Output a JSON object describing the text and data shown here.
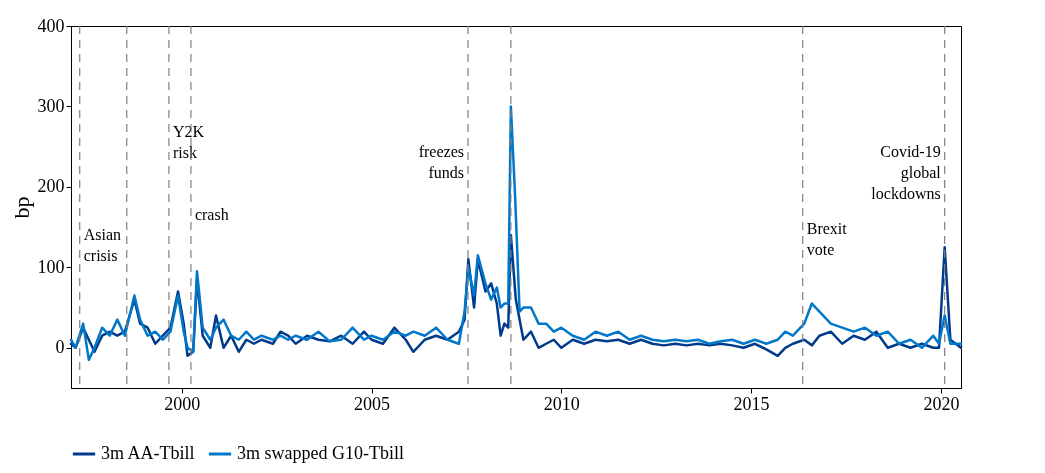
{
  "chart_data": {
    "type": "line",
    "ylabel": "bp",
    "xlim": [
      1997.08,
      2020.53
    ],
    "xticks": [
      2000,
      2005,
      2010,
      2015,
      2020
    ],
    "ylim": [
      -50,
      400
    ],
    "yticks": [
      0,
      100,
      200,
      300,
      400
    ],
    "grid": false,
    "legend": "bottom",
    "marker": "none",
    "line_style": "solid",
    "series": [
      {
        "name": "3m AA-Tbill",
        "color": "#003a8c",
        "x": [
          1997.08,
          1997.2,
          1997.4,
          1997.55,
          1997.7,
          1997.9,
          1998.1,
          1998.3,
          1998.5,
          1998.75,
          1998.9,
          1999.1,
          1999.3,
          1999.5,
          1999.7,
          1999.9,
          2000.05,
          2000.15,
          2000.3,
          2000.4,
          2000.55,
          2000.75,
          2000.9,
          2001.1,
          2001.3,
          2001.5,
          2001.7,
          2001.9,
          2002.1,
          2002.4,
          2002.6,
          2002.8,
          2003.0,
          2003.3,
          2003.6,
          2003.9,
          2004.2,
          2004.5,
          2004.8,
          2005.0,
          2005.3,
          2005.6,
          2005.9,
          2006.1,
          2006.4,
          2006.7,
          2007.0,
          2007.3,
          2007.45,
          2007.55,
          2007.7,
          2007.8,
          2008.0,
          2008.15,
          2008.3,
          2008.4,
          2008.5,
          2008.6,
          2008.67,
          2008.8,
          2009.0,
          2009.2,
          2009.4,
          2009.6,
          2009.8,
          2010.0,
          2010.3,
          2010.6,
          2010.9,
          2011.2,
          2011.5,
          2011.8,
          2012.1,
          2012.4,
          2012.7,
          2013.0,
          2013.3,
          2013.6,
          2013.9,
          2014.2,
          2014.5,
          2014.8,
          2015.1,
          2015.4,
          2015.7,
          2015.9,
          2016.1,
          2016.4,
          2016.6,
          2016.8,
          2017.1,
          2017.4,
          2017.7,
          2018.0,
          2018.3,
          2018.6,
          2018.9,
          2019.2,
          2019.5,
          2019.8,
          2019.95,
          2020.1,
          2020.25,
          2020.53
        ],
        "values": [
          5,
          0,
          25,
          10,
          -5,
          15,
          20,
          15,
          20,
          60,
          30,
          25,
          5,
          15,
          25,
          70,
          30,
          -10,
          -5,
          85,
          15,
          0,
          40,
          0,
          15,
          -5,
          10,
          5,
          10,
          5,
          20,
          15,
          5,
          15,
          10,
          8,
          15,
          5,
          20,
          10,
          5,
          25,
          10,
          -5,
          10,
          15,
          10,
          20,
          35,
          110,
          50,
          110,
          70,
          80,
          55,
          15,
          30,
          25,
          140,
          60,
          10,
          20,
          0,
          5,
          10,
          0,
          10,
          5,
          10,
          8,
          10,
          5,
          10,
          5,
          3,
          5,
          3,
          5,
          3,
          5,
          3,
          0,
          5,
          -2,
          -10,
          0,
          5,
          10,
          3,
          15,
          20,
          5,
          15,
          10,
          20,
          0,
          5,
          0,
          5,
          0,
          0,
          125,
          10,
          0
        ]
      },
      {
        "name": "3m swapped G10-Tbill",
        "color": "#0077c8",
        "x": [
          1997.08,
          1997.2,
          1997.4,
          1997.55,
          1997.7,
          1997.9,
          1998.1,
          1998.3,
          1998.5,
          1998.75,
          1998.9,
          1999.1,
          1999.3,
          1999.5,
          1999.7,
          1999.9,
          2000.05,
          2000.15,
          2000.3,
          2000.4,
          2000.55,
          2000.75,
          2000.9,
          2001.1,
          2001.3,
          2001.5,
          2001.7,
          2001.9,
          2002.1,
          2002.4,
          2002.6,
          2002.8,
          2003.0,
          2003.3,
          2003.6,
          2003.9,
          2004.2,
          2004.5,
          2004.8,
          2005.0,
          2005.3,
          2005.6,
          2005.9,
          2006.1,
          2006.4,
          2006.7,
          2007.0,
          2007.3,
          2007.45,
          2007.55,
          2007.7,
          2007.8,
          2008.0,
          2008.15,
          2008.3,
          2008.4,
          2008.5,
          2008.6,
          2008.67,
          2008.78,
          2008.9,
          2009.0,
          2009.2,
          2009.4,
          2009.6,
          2009.8,
          2010.0,
          2010.3,
          2010.6,
          2010.9,
          2011.2,
          2011.5,
          2011.8,
          2012.1,
          2012.4,
          2012.7,
          2013.0,
          2013.3,
          2013.6,
          2013.9,
          2014.2,
          2014.5,
          2014.8,
          2015.1,
          2015.4,
          2015.7,
          2015.9,
          2016.1,
          2016.4,
          2016.6,
          2016.8,
          2017.1,
          2017.4,
          2017.7,
          2018.0,
          2018.3,
          2018.6,
          2018.9,
          2019.2,
          2019.5,
          2019.8,
          2019.95,
          2020.1,
          2020.25,
          2020.53
        ],
        "values": [
          10,
          0,
          30,
          -15,
          0,
          25,
          15,
          35,
          15,
          65,
          35,
          15,
          20,
          10,
          20,
          65,
          20,
          0,
          -5,
          95,
          25,
          10,
          25,
          35,
          15,
          10,
          20,
          10,
          15,
          10,
          15,
          10,
          15,
          10,
          20,
          8,
          10,
          25,
          10,
          15,
          10,
          20,
          15,
          20,
          15,
          25,
          10,
          5,
          45,
          100,
          65,
          115,
          80,
          60,
          75,
          50,
          55,
          55,
          300,
          190,
          45,
          50,
          50,
          30,
          30,
          20,
          25,
          15,
          10,
          20,
          15,
          20,
          10,
          15,
          10,
          8,
          10,
          8,
          10,
          5,
          8,
          10,
          5,
          10,
          5,
          10,
          20,
          15,
          30,
          55,
          45,
          30,
          25,
          20,
          25,
          15,
          20,
          5,
          10,
          0,
          15,
          5,
          40,
          5,
          5
        ]
      }
    ],
    "ref_lines": [
      {
        "axis": "x",
        "value": 1997.31,
        "label": "Asian crisis",
        "color": "#808080",
        "line_style": "dashed"
      },
      {
        "axis": "x",
        "value": 1998.55,
        "color": "#808080",
        "line_style": "dashed"
      },
      {
        "axis": "x",
        "value": 1999.66,
        "label": "Y2K risk",
        "color": "#808080",
        "line_style": "dashed"
      },
      {
        "axis": "x",
        "value": 2000.24,
        "label": "crash",
        "color": "#808080",
        "line_style": "dashed"
      },
      {
        "axis": "x",
        "value": 2007.54,
        "label": "freezes funds",
        "color": "#808080",
        "line_style": "dashed"
      },
      {
        "axis": "x",
        "value": 2008.67,
        "color": "#808080",
        "line_style": "dashed"
      },
      {
        "axis": "x",
        "value": 2016.36,
        "label": "Brexit vote",
        "color": "#808080",
        "line_style": "dashed"
      },
      {
        "axis": "x",
        "value": 2020.1,
        "label": "Covid-19 global lockdowns",
        "color": "#808080",
        "line_style": "dashed"
      }
    ]
  }
}
